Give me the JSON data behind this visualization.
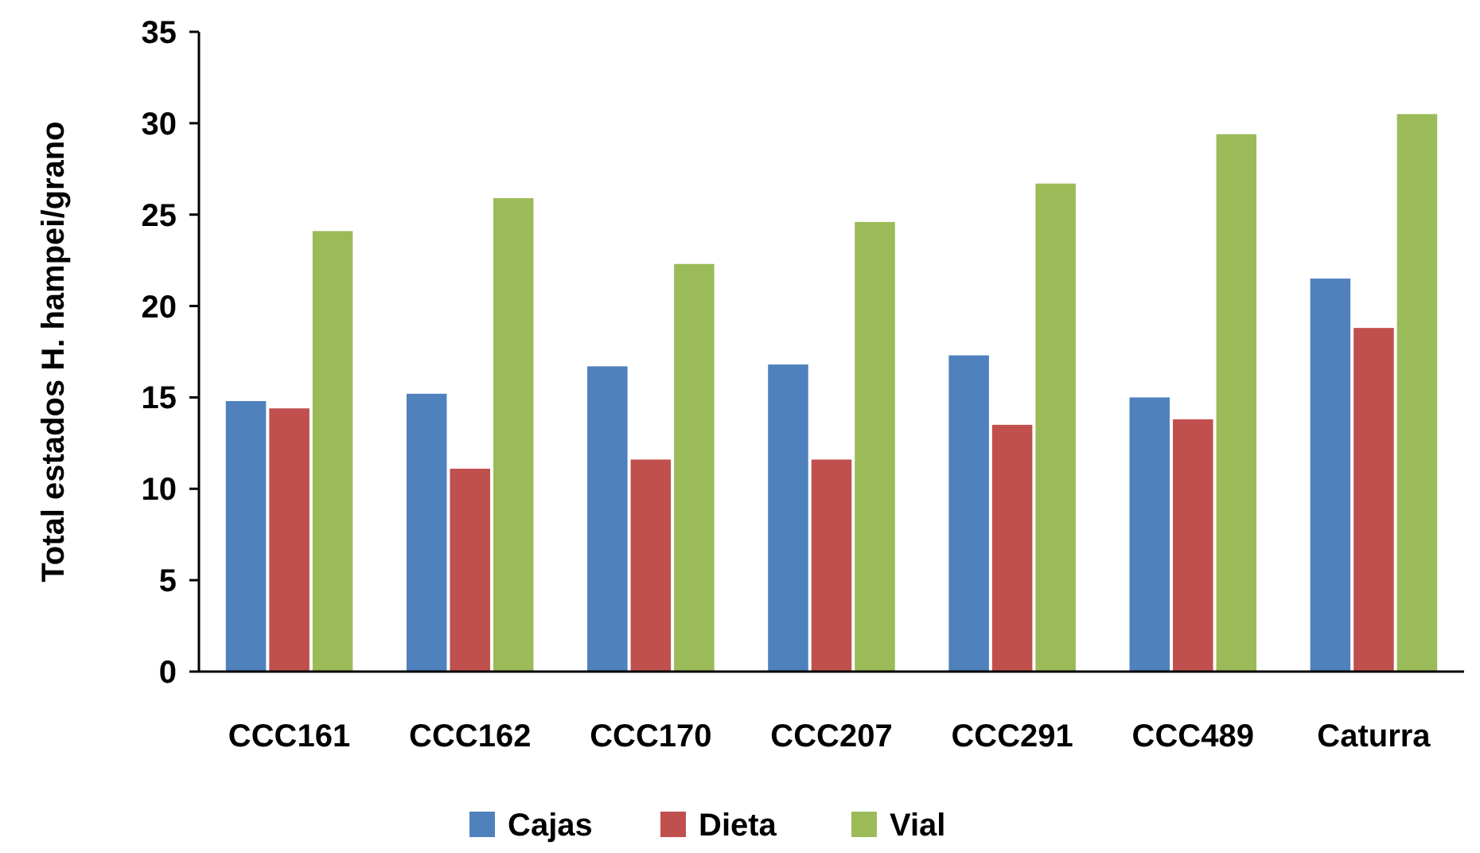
{
  "chart_data": {
    "type": "bar",
    "ylabel": "Total estados H. hampei/grano",
    "categories": [
      "CCC161",
      "CCC162",
      "CCC170",
      "CCC207",
      "CCC291",
      "CCC489",
      "Caturra"
    ],
    "series": [
      {
        "name": "Cajas",
        "color": "#4f81bd",
        "values": [
          14.8,
          15.2,
          16.7,
          16.8,
          17.3,
          15.0,
          21.5
        ]
      },
      {
        "name": "Dieta",
        "color": "#c0504d",
        "values": [
          14.4,
          11.1,
          11.6,
          11.6,
          13.5,
          13.8,
          18.8
        ]
      },
      {
        "name": "Vial",
        "color": "#9bbb59",
        "values": [
          24.1,
          25.9,
          22.3,
          24.6,
          26.7,
          29.4,
          30.5
        ]
      }
    ],
    "ylim": [
      0,
      35
    ],
    "yticks": [
      0,
      5,
      10,
      15,
      20,
      25,
      30,
      35
    ],
    "grid": false,
    "legend": "bottom"
  }
}
